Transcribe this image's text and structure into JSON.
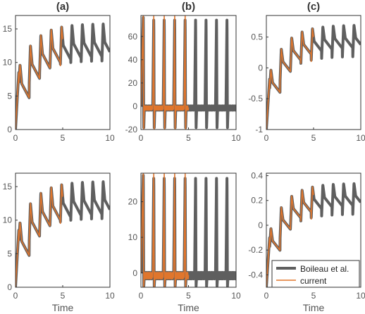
{
  "colors": {
    "reference": "#5f5f5f",
    "current": "#e0762d",
    "axis": "#333333",
    "tick_text": "#555555",
    "title_text": "#333333"
  },
  "legend": {
    "position": "bottom-right of panel (c), row 2",
    "entries": [
      {
        "label": "Boileau et al.",
        "color": "#5f5f5f"
      },
      {
        "label": "current",
        "color": "#e0762d"
      }
    ]
  },
  "chart_data": [
    {
      "panel": "(a)",
      "type": "line",
      "title": "(a)",
      "xlabel": "",
      "ylabel": "",
      "xlim": [
        0,
        10
      ],
      "ylim": [
        0,
        17
      ],
      "x_ticks": [
        0,
        5,
        10
      ],
      "y_ticks": [
        0,
        5,
        10,
        15
      ],
      "grid": false,
      "waveform": {
        "t0": 0.35,
        "period": 1.1,
        "baseline": [
          0,
          8.5
        ],
        "peak_rise": 8.2,
        "trough_drop": 4.7
      },
      "series": [
        {
          "name": "Boileau et al.",
          "x_range": [
            0,
            10
          ]
        },
        {
          "name": "current",
          "x_range": [
            0,
            5
          ]
        }
      ]
    },
    {
      "panel": "(b)",
      "type": "line",
      "title": "(b)",
      "xlabel": "",
      "ylabel": "",
      "xlim": [
        0,
        10
      ],
      "ylim": [
        -20,
        78
      ],
      "x_ticks": [
        0,
        5,
        10
      ],
      "y_ticks": [
        -20,
        0,
        20,
        40,
        60
      ],
      "grid": false,
      "waveform": {
        "t0": 0.25,
        "period": 1.1,
        "spike_high": 78,
        "spike_low": -20,
        "baseline": [
          -3,
          0
        ]
      },
      "series": [
        {
          "name": "Boileau et al.",
          "x_range": [
            0,
            10
          ]
        },
        {
          "name": "current",
          "x_range": [
            0,
            5
          ]
        }
      ]
    },
    {
      "panel": "(c)",
      "type": "line",
      "title": "(c)",
      "xlabel": "",
      "ylabel": "",
      "xlim": [
        0,
        10
      ],
      "ylim": [
        -1,
        0.85
      ],
      "x_ticks": [
        0,
        5,
        10
      ],
      "y_ticks": [
        -1,
        -0.5,
        0,
        0.5
      ],
      "grid": false,
      "waveform": {
        "t0": 0.35,
        "period": 1.1,
        "baseline": [
          -1.0,
          0.0
        ],
        "peak_rise": 0.78,
        "trough_drop": 0.35
      },
      "series": [
        {
          "name": "Boileau et al.",
          "x_range": [
            0,
            10
          ]
        },
        {
          "name": "current",
          "x_range": [
            0,
            5
          ]
        }
      ]
    },
    {
      "panel": "row2-a",
      "type": "line",
      "title": "",
      "xlabel": "Time",
      "ylabel": "",
      "xlim": [
        0,
        10
      ],
      "ylim": [
        0,
        17
      ],
      "x_ticks": [
        0,
        5,
        10
      ],
      "y_ticks": [
        0,
        5,
        10,
        15
      ],
      "grid": false,
      "waveform": {
        "t0": 0.35,
        "period": 1.1,
        "baseline": [
          0,
          8.5
        ],
        "peak_rise": 8.2,
        "trough_drop": 4.7
      },
      "series": [
        {
          "name": "Boileau et al.",
          "x_range": [
            0,
            10
          ]
        },
        {
          "name": "current",
          "x_range": [
            0,
            5
          ]
        }
      ]
    },
    {
      "panel": "row2-b",
      "type": "line",
      "title": "",
      "xlabel": "Time",
      "ylabel": "",
      "xlim": [
        0,
        10
      ],
      "ylim": [
        -4,
        28
      ],
      "x_ticks": [
        0,
        5,
        10
      ],
      "y_ticks": [
        0,
        10,
        20
      ],
      "grid": false,
      "waveform": {
        "t0": 0.25,
        "period": 1.1,
        "spike_high": 28,
        "spike_low": -4,
        "baseline": [
          -1.5,
          0
        ]
      },
      "series": [
        {
          "name": "Boileau et al.",
          "x_range": [
            0,
            10
          ]
        },
        {
          "name": "current",
          "x_range": [
            0,
            5
          ]
        }
      ]
    },
    {
      "panel": "row2-c",
      "type": "line",
      "title": "",
      "xlabel": "Time",
      "ylabel": "",
      "xlim": [
        0,
        10
      ],
      "ylim": [
        -0.5,
        0.42
      ],
      "x_ticks": [
        0,
        5,
        10
      ],
      "y_ticks": [
        -0.4,
        -0.2,
        0,
        0.2,
        0.4
      ],
      "grid": false,
      "waveform": {
        "t0": 0.35,
        "period": 1.1,
        "baseline": [
          -0.5,
          0.0
        ],
        "peak_rise": 0.38,
        "trough_drop": 0.17
      },
      "series": [
        {
          "name": "Boileau et al.",
          "x_range": [
            0,
            10
          ]
        },
        {
          "name": "current",
          "x_range": [
            0,
            5
          ]
        }
      ]
    }
  ]
}
